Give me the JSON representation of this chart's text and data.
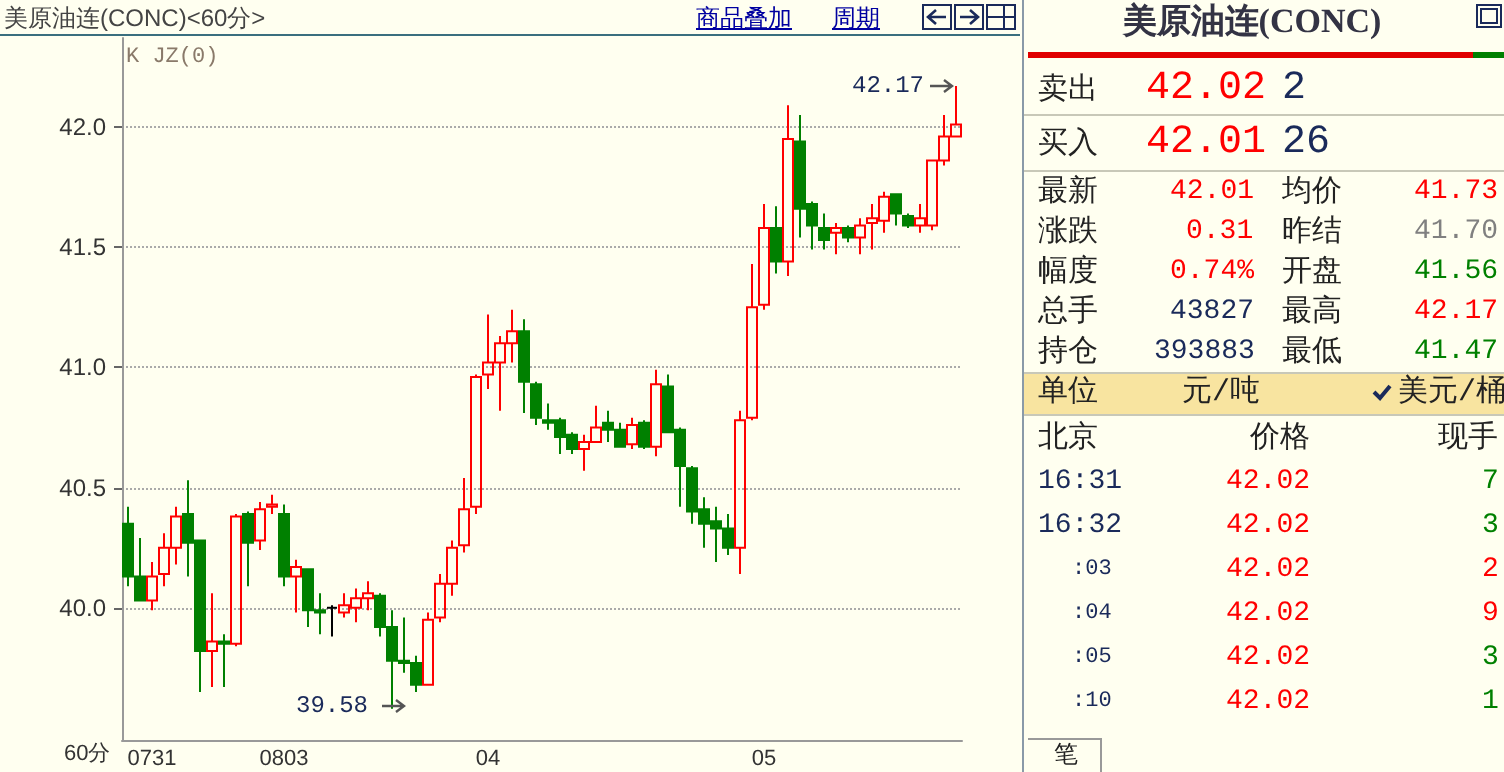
{
  "chart_data": [
    {
      "type": "candlestick",
      "title": "美原油连(CONC)<60分>",
      "categories": [
        null,
        null,
        "0731",
        null,
        null,
        null,
        null,
        null,
        null,
        null,
        null,
        null,
        null,
        "0803",
        null,
        null,
        null,
        null,
        null,
        null,
        null,
        null,
        null,
        null,
        null,
        null,
        null,
        null,
        null,
        null,
        "04",
        null,
        null,
        null,
        null,
        null,
        null,
        null,
        null,
        null,
        null,
        null,
        null,
        null,
        null,
        null,
        null,
        null,
        null,
        null,
        null,
        null,
        null,
        "05",
        null,
        null,
        null,
        null,
        null,
        null,
        null,
        null,
        null,
        null,
        null,
        null,
        null,
        null,
        null,
        null
      ],
      "ohlc": [
        [
          40.35,
          40.42,
          40.09,
          40.13
        ],
        [
          40.13,
          40.29,
          40.03,
          40.03
        ],
        [
          40.03,
          40.19,
          39.99,
          40.13
        ],
        [
          40.14,
          40.31,
          40.09,
          40.25
        ],
        [
          40.25,
          40.42,
          40.18,
          40.38
        ],
        [
          40.39,
          40.53,
          40.13,
          40.27
        ],
        [
          40.28,
          40.28,
          39.65,
          39.82
        ],
        [
          39.82,
          40.06,
          39.67,
          39.86
        ],
        [
          39.86,
          39.89,
          39.67,
          39.85
        ],
        [
          39.85,
          40.39,
          39.84,
          40.38
        ],
        [
          40.39,
          40.4,
          40.09,
          40.27
        ],
        [
          40.28,
          40.44,
          40.24,
          40.41
        ],
        [
          40.42,
          40.47,
          40.39,
          40.43
        ],
        [
          40.39,
          40.43,
          40.09,
          40.13
        ],
        [
          40.13,
          40.2,
          39.98,
          40.17
        ],
        [
          40.16,
          40.16,
          39.92,
          39.99
        ],
        [
          39.99,
          40.06,
          39.89,
          39.98
        ],
        [
          40.0,
          40.01,
          39.88,
          40.0
        ],
        [
          39.98,
          40.06,
          39.96,
          40.01
        ],
        [
          40.0,
          40.08,
          39.94,
          40.04
        ],
        [
          40.04,
          40.11,
          39.99,
          40.06
        ],
        [
          40.05,
          40.06,
          39.88,
          39.92
        ],
        [
          39.92,
          39.99,
          39.58,
          39.78
        ],
        [
          39.78,
          39.96,
          39.73,
          39.77
        ],
        [
          39.77,
          39.8,
          39.65,
          39.68
        ],
        [
          39.68,
          39.98,
          39.68,
          39.95
        ],
        [
          39.96,
          40.14,
          39.94,
          40.1
        ],
        [
          40.1,
          40.28,
          40.05,
          40.25
        ],
        [
          40.26,
          40.54,
          40.23,
          40.41
        ],
        [
          40.42,
          40.97,
          40.39,
          40.96
        ],
        [
          40.97,
          41.22,
          40.91,
          41.02
        ],
        [
          41.02,
          41.13,
          40.82,
          41.1
        ],
        [
          41.1,
          41.24,
          41.02,
          41.15
        ],
        [
          41.15,
          41.2,
          40.81,
          40.94
        ],
        [
          40.93,
          40.94,
          40.76,
          40.79
        ],
        [
          40.78,
          40.85,
          40.74,
          40.77
        ],
        [
          40.78,
          40.79,
          40.64,
          40.71
        ],
        [
          40.72,
          40.73,
          40.64,
          40.66
        ],
        [
          40.66,
          40.72,
          40.57,
          40.69
        ],
        [
          40.69,
          40.84,
          40.69,
          40.75
        ],
        [
          40.77,
          40.82,
          40.69,
          40.74
        ],
        [
          40.74,
          40.77,
          40.67,
          40.67
        ],
        [
          40.68,
          40.79,
          40.66,
          40.76
        ],
        [
          40.77,
          40.78,
          40.66,
          40.67
        ],
        [
          40.67,
          40.99,
          40.63,
          40.93
        ],
        [
          40.92,
          40.97,
          40.73,
          40.73
        ],
        [
          40.74,
          40.75,
          40.42,
          40.59
        ],
        [
          40.58,
          40.59,
          40.35,
          40.4
        ],
        [
          40.41,
          40.46,
          40.25,
          40.35
        ],
        [
          40.36,
          40.42,
          40.19,
          40.33
        ],
        [
          40.33,
          40.39,
          40.22,
          40.25
        ],
        [
          40.25,
          40.82,
          40.14,
          40.78
        ],
        [
          40.79,
          41.43,
          40.78,
          41.25
        ],
        [
          41.26,
          41.68,
          41.24,
          41.58
        ],
        [
          41.58,
          41.67,
          41.39,
          41.44
        ],
        [
          41.44,
          42.09,
          41.38,
          41.95
        ],
        [
          41.94,
          42.05,
          41.54,
          41.66
        ],
        [
          41.68,
          41.69,
          41.49,
          41.59
        ],
        [
          41.58,
          41.64,
          41.49,
          41.53
        ],
        [
          41.56,
          41.6,
          41.47,
          41.58
        ],
        [
          41.58,
          41.59,
          41.52,
          41.54
        ],
        [
          41.54,
          41.62,
          41.47,
          41.59
        ],
        [
          41.6,
          41.68,
          41.49,
          41.62
        ],
        [
          41.61,
          41.73,
          41.56,
          41.71
        ],
        [
          41.72,
          41.72,
          41.59,
          41.64
        ],
        [
          41.63,
          41.64,
          41.58,
          41.59
        ],
        [
          41.59,
          41.68,
          41.56,
          41.62
        ],
        [
          41.59,
          41.86,
          41.57,
          41.86
        ],
        [
          41.86,
          42.05,
          41.84,
          41.96
        ],
        [
          41.96,
          42.17,
          41.96,
          42.01
        ]
      ],
      "ylim": [
        39.45,
        42.37
      ],
      "yticks": [
        {
          "value": 40,
          "label": "40.0"
        },
        {
          "value": 40.5,
          "label": "40.5"
        },
        {
          "value": 41,
          "label": "41.0"
        },
        {
          "value": 41.5,
          "label": "41.5"
        },
        {
          "value": 42,
          "label": "42.0"
        }
      ],
      "grid": "y",
      "xlabel": "60分",
      "annotations": [
        "K JZ(0)",
        "商品叠加",
        "周期",
        "39.58",
        "42.17"
      ]
    },
    {
      "type": "other",
      "title": "美原油连(CONC)",
      "annotations": [
        "卖出",
        "42.02",
        "2",
        "买入",
        "42.01",
        "26",
        "最新",
        "42.01",
        "均价",
        "41.73",
        "涨跌",
        "0.31",
        "昨结",
        "41.70",
        "幅度",
        "0.74%",
        "开盘",
        "41.56",
        "总手",
        "43827",
        "最高",
        "42.17",
        "持仓",
        "393883",
        "最低",
        "41.47",
        "单位",
        "元/吨",
        "美元/桶",
        "北京",
        "价格",
        "现手",
        "16:31",
        "42.02",
        "7",
        "16:32",
        "42.02",
        "3",
        ":03",
        "42.02",
        "2",
        ":04",
        "42.02",
        "9",
        ":05",
        "42.02",
        "3",
        ":10",
        "42.02",
        "1",
        "笔"
      ]
    }
  ]
}
